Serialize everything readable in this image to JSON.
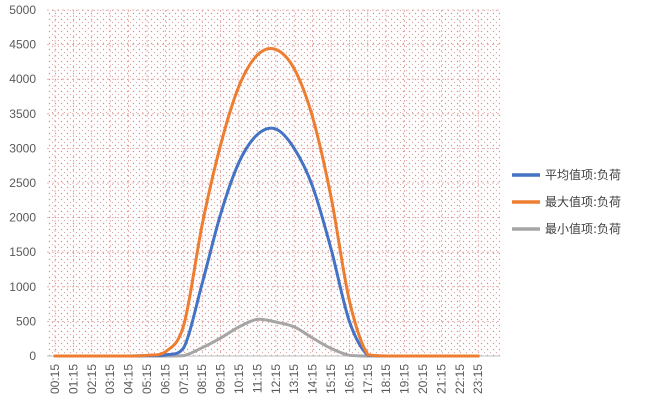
{
  "chart_data": {
    "type": "line",
    "ylim": [
      0,
      5000
    ],
    "yticks": [
      0,
      500,
      1000,
      1500,
      2000,
      2500,
      3000,
      3500,
      4000,
      4500,
      5000
    ],
    "xtick_labels": [
      "00:15",
      "01:15",
      "02:15",
      "03:15",
      "04:15",
      "05:15",
      "06:15",
      "07:15",
      "08:15",
      "09:15",
      "10:15",
      "11:15",
      "12:15",
      "13:15",
      "14:15",
      "15:15",
      "16:15",
      "17:15",
      "18:15",
      "19:15",
      "20:15",
      "21:15",
      "22:15",
      "23:15"
    ],
    "grid": true,
    "legend_position": "right",
    "x": [
      "00:15",
      "01:15",
      "02:15",
      "03:15",
      "04:15",
      "05:15",
      "06:15",
      "07:15",
      "08:15",
      "09:15",
      "10:15",
      "11:15",
      "12:15",
      "13:15",
      "14:15",
      "15:15",
      "16:15",
      "17:15",
      "18:15",
      "19:15",
      "20:15",
      "21:15",
      "22:15",
      "23:15"
    ],
    "series": [
      {
        "name": "平均值项:负荷",
        "color": "#4472C4",
        "values": [
          0,
          0,
          0,
          0,
          0,
          5,
          15,
          120,
          1050,
          2050,
          2800,
          3200,
          3280,
          3000,
          2450,
          1550,
          500,
          10,
          0,
          0,
          0,
          0,
          0,
          0
        ]
      },
      {
        "name": "最大值项:负荷",
        "color": "#ED7D31",
        "values": [
          0,
          0,
          0,
          0,
          0,
          10,
          60,
          450,
          1900,
          3050,
          3900,
          4350,
          4430,
          4150,
          3450,
          2300,
          800,
          20,
          0,
          0,
          0,
          0,
          0,
          0
        ]
      },
      {
        "name": "最小值项:负荷",
        "color": "#A5A5A5",
        "values": [
          0,
          0,
          0,
          0,
          0,
          0,
          0,
          5,
          120,
          260,
          420,
          530,
          490,
          420,
          260,
          110,
          10,
          0,
          0,
          0,
          0,
          0,
          0,
          0
        ]
      }
    ]
  }
}
